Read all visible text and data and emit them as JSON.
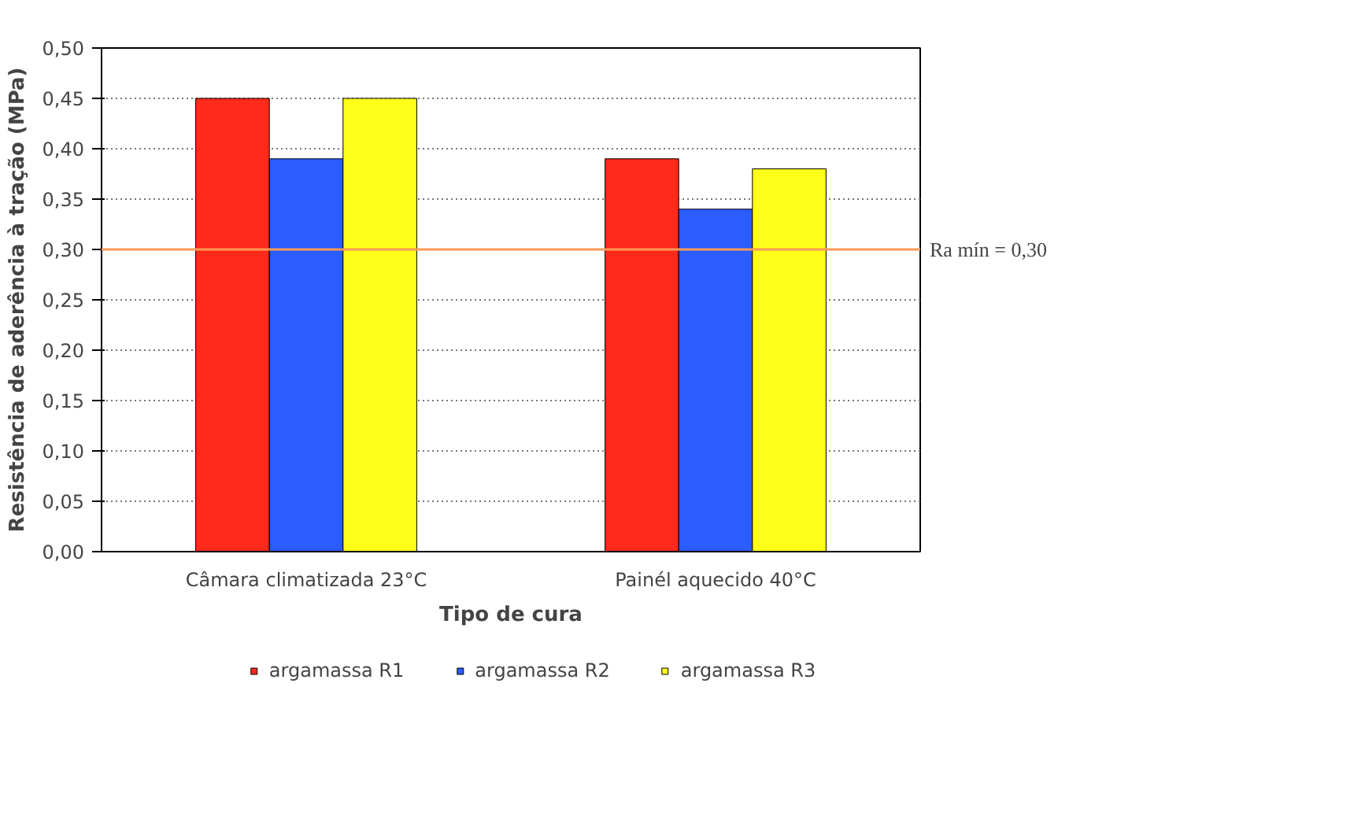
{
  "chart_data": {
    "type": "bar",
    "xlabel": "Tipo de cura",
    "ylabel": "Resistência de aderência à tração (MPa)",
    "categories": [
      "Câmara climatizada 23°C",
      "Painél aquecido 40°C"
    ],
    "series": [
      {
        "name": "argamassa R1",
        "color": "#ff2a1a",
        "values": [
          0.45,
          0.39
        ]
      },
      {
        "name": "argamassa R2",
        "color": "#2a5cff",
        "values": [
          0.39,
          0.34
        ]
      },
      {
        "name": "argamassa R3",
        "color": "#ffff1a",
        "values": [
          0.45,
          0.38
        ]
      }
    ],
    "ylim": [
      0,
      0.5
    ],
    "yticks": [
      {
        "value": 0,
        "label": "0,00"
      },
      {
        "value": 0.05,
        "label": "0,05"
      },
      {
        "value": 0.1,
        "label": "0,10"
      },
      {
        "value": 0.15,
        "label": "0,15"
      },
      {
        "value": 0.2,
        "label": "0,20"
      },
      {
        "value": 0.25,
        "label": "0,25"
      },
      {
        "value": 0.3,
        "label": "0,30"
      },
      {
        "value": 0.35,
        "label": "0,35"
      },
      {
        "value": 0.4,
        "label": "0,40"
      },
      {
        "value": 0.45,
        "label": "0,45"
      },
      {
        "value": 0.5,
        "label": "0,50"
      }
    ],
    "ref_lines": [
      {
        "axis": "y",
        "value": 0.3,
        "label": "Ra mín = 0,30",
        "color": "#ff9955"
      }
    ],
    "grid": "y",
    "legend": "bottom"
  }
}
